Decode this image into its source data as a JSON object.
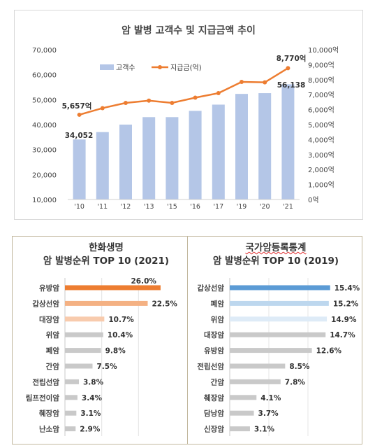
{
  "chart_data": [
    {
      "type": "bar+line",
      "title": "암 발병 고객수 및 지급금액 추이",
      "categories": [
        "'10",
        "'11",
        "'12",
        "'13",
        "'15",
        "'16",
        "'17",
        "'19",
        "'20",
        "'21"
      ],
      "series": [
        {
          "name": "고객수",
          "type": "bar",
          "axis": "left",
          "color": "#b4c6e7",
          "values": [
            34052,
            37000,
            40000,
            43000,
            43000,
            45500,
            48000,
            52300,
            52600,
            56138
          ]
        },
        {
          "name": "지급금(억)",
          "type": "line",
          "axis": "right",
          "color": "#ed7d31",
          "values": [
            5657,
            6100,
            6450,
            6600,
            6450,
            6800,
            7100,
            7850,
            7820,
            8770
          ]
        }
      ],
      "ylim_left": [
        10000,
        70000
      ],
      "yticks_left": [
        "10,000",
        "20,000",
        "30,000",
        "40,000",
        "50,000",
        "60,000",
        "70,000"
      ],
      "ylim_right": [
        0,
        10000
      ],
      "yticks_right": [
        "0억",
        "1,000억",
        "2,000억",
        "3,000억",
        "4,000억",
        "5,000억",
        "6,000억",
        "7,000억",
        "8,000억",
        "9,000억",
        "10,000억"
      ],
      "annotations": {
        "bar_first": "34,052",
        "bar_last": "56,138",
        "line_first": "5,657억",
        "line_last": "8,770억"
      },
      "legend": "top-center",
      "grid": false
    },
    {
      "type": "bar",
      "orientation": "horizontal",
      "title_line1": "한화생명",
      "title_line2": "암 발병순위 TOP 10 (2021)",
      "categories": [
        "유방암",
        "갑상선암",
        "대장암",
        "위암",
        "폐암",
        "간암",
        "전립선암",
        "림프전이암",
        "췌장암",
        "난소암"
      ],
      "values": [
        26.0,
        22.5,
        10.7,
        10.4,
        9.8,
        7.5,
        3.8,
        3.4,
        3.1,
        2.9
      ],
      "labels": [
        "26.0%",
        "22.5%",
        "10.7%",
        "10.4%",
        "9.8%",
        "7.5%",
        "3.8%",
        "3.4%",
        "3.1%",
        "2.9%"
      ],
      "colors": [
        "#ed7d31",
        "#f4b183",
        "#f8cbad",
        "#c9c9c9",
        "#c9c9c9",
        "#c9c9c9",
        "#c9c9c9",
        "#c9c9c9",
        "#c9c9c9",
        "#c9c9c9"
      ],
      "xlim": [
        0,
        30
      ]
    },
    {
      "type": "bar",
      "orientation": "horizontal",
      "title_line1": "국가암등록통계",
      "title_line2": "암 발병순위 TOP 10 (2019)",
      "categories": [
        "갑상선암",
        "폐암",
        "위암",
        "대장암",
        "유방암",
        "전립선암",
        "간암",
        "췌장암",
        "담낭암",
        "신장암"
      ],
      "values": [
        15.4,
        15.2,
        14.9,
        14.7,
        12.6,
        8.5,
        7.8,
        4.1,
        3.7,
        3.1
      ],
      "labels": [
        "15.4%",
        "15.2%",
        "14.9%",
        "14.7%",
        "12.6%",
        "8.5%",
        "7.8%",
        "4.1%",
        "3.7%",
        "3.1%"
      ],
      "colors": [
        "#5b9bd5",
        "#bdd7ee",
        "#deebf7",
        "#c9c9c9",
        "#c9c9c9",
        "#c9c9c9",
        "#c9c9c9",
        "#c9c9c9",
        "#c9c9c9",
        "#c9c9c9"
      ],
      "xlim": [
        0,
        18
      ]
    }
  ]
}
